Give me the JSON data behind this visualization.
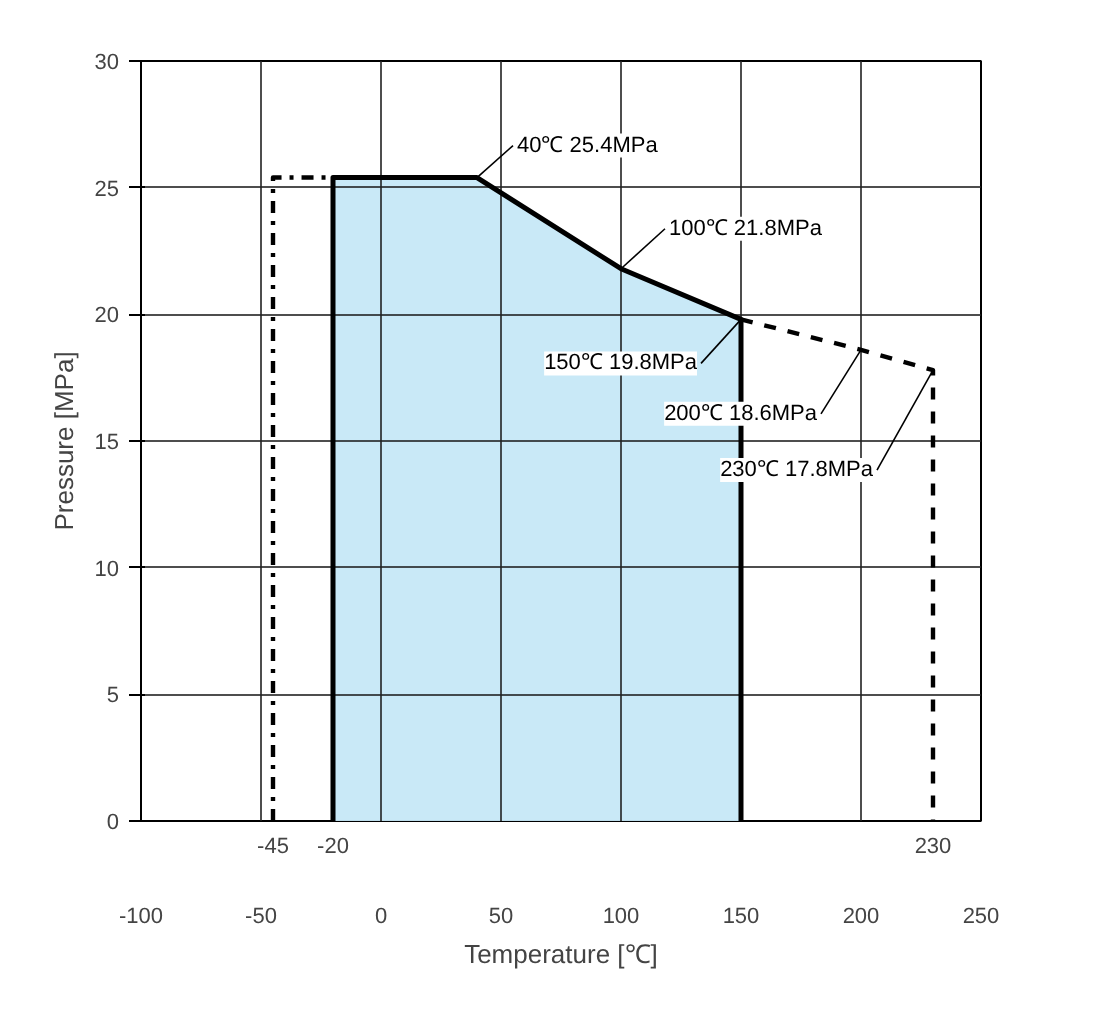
{
  "chart_data": {
    "type": "line",
    "xlabel": "Temperature [℃]",
    "ylabel": "Pressure [MPa]",
    "xlim": [
      -100,
      250
    ],
    "ylim": [
      0,
      30
    ],
    "xticks": [
      -100,
      -50,
      0,
      50,
      100,
      150,
      200,
      250
    ],
    "yticks": [
      0,
      5,
      10,
      15,
      20,
      25,
      30
    ],
    "grid": true,
    "series": [
      {
        "type": "area",
        "color": "#c6e8f7",
        "line_style": "solid",
        "x": [
          -20,
          -20,
          40,
          100,
          150,
          150
        ],
        "values": [
          0,
          25.4,
          25.4,
          21.8,
          19.8,
          0
        ]
      },
      {
        "color": "#000000",
        "line_style": "dashdot",
        "x": [
          -45,
          -45,
          -20
        ],
        "values": [
          0,
          25.4,
          25.4
        ]
      },
      {
        "color": "#000000",
        "line_style": "dashed",
        "x": [
          150,
          200,
          230,
          230
        ],
        "values": [
          19.8,
          18.6,
          17.8,
          0
        ]
      }
    ],
    "annotations": [
      {
        "text": "40℃ 25.4MPa",
        "x": 40,
        "y": 25.4
      },
      {
        "text": "100℃ 21.8MPa",
        "x": 100,
        "y": 21.8
      },
      {
        "text": "150℃ 19.8MPa",
        "x": 150,
        "y": 19.8
      },
      {
        "text": "200℃ 18.6MPa",
        "x": 200,
        "y": 18.6
      },
      {
        "text": "230℃ 17.8MPa",
        "x": 230,
        "y": 17.8
      },
      {
        "text": "-45",
        "x": -45,
        "y": 0
      },
      {
        "text": "-20",
        "x": -20,
        "y": 0
      },
      {
        "text": "230",
        "x": 230,
        "y": 0
      }
    ]
  }
}
